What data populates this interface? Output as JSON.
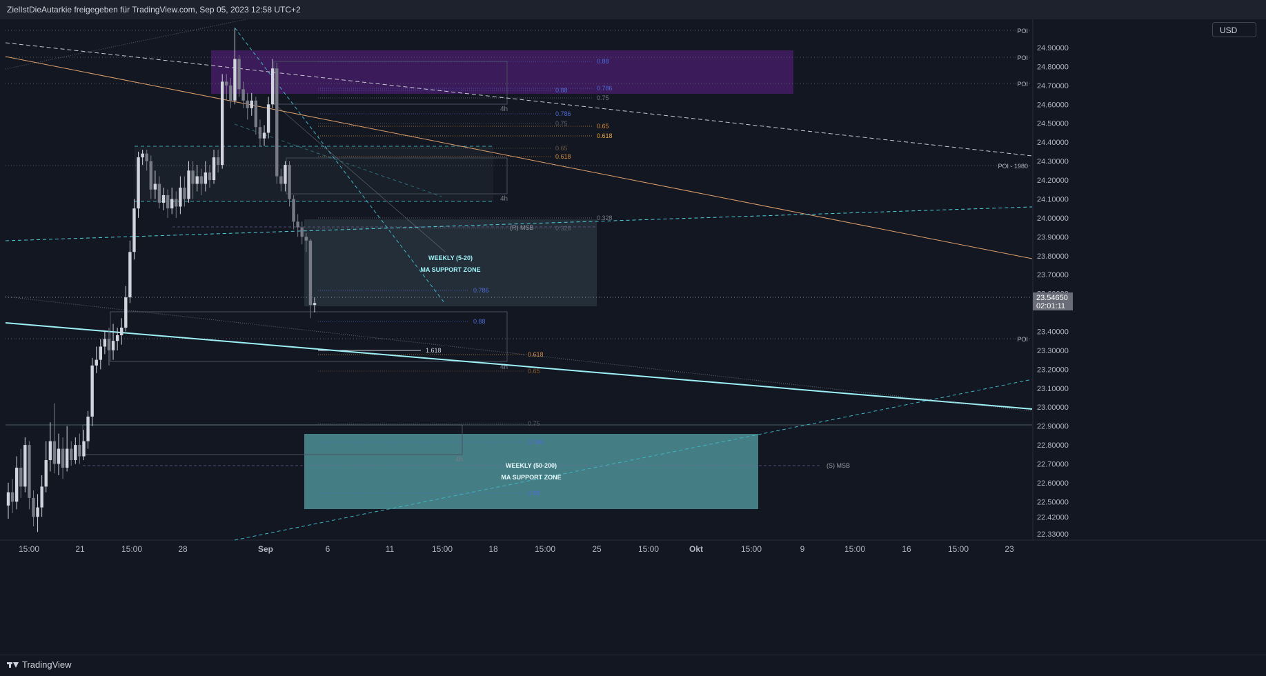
{
  "header": {
    "attribution": "ZielIstDieAutarkie freigegeben für TradingView.com, Sep 05, 2023 12:58 UTC+2"
  },
  "currency_button": "USD",
  "footer": {
    "brand": "TradingView"
  },
  "colors": {
    "background": "#131722",
    "candle_up": "#d1d4dc",
    "candle_down": "#787b86",
    "purple_zone": "#4a1d6e",
    "teal_zone": "#4e8f95",
    "support_line": "#9ef1f6",
    "orange_line": "#e0a06a",
    "fib_blue": "#4f6cd8",
    "fib_orange": "#d98e39"
  },
  "chart_data": {
    "type": "candlestick",
    "y_axis": {
      "min": 22.28,
      "max": 25.0,
      "ticks": [
        "24.90000",
        "24.80000",
        "24.70000",
        "24.60000",
        "24.50000",
        "24.40000",
        "24.30000",
        "24.20000",
        "24.10000",
        "24.00000",
        "23.90000",
        "23.80000",
        "23.70000",
        "23.60000",
        "23.40000",
        "23.30000",
        "23.20000",
        "23.10000",
        "23.00000",
        "22.90000",
        "22.80000",
        "22.70000",
        "22.60000",
        "22.50000",
        "22.42000",
        "22.33000"
      ]
    },
    "x_axis": {
      "ticks": [
        "15:00",
        "21",
        "15:00",
        "28",
        "Sep",
        "6",
        "11",
        "15:00",
        "18",
        "15:00",
        "25",
        "15:00",
        "Okt",
        "15:00",
        "9",
        "15:00",
        "16",
        "15:00",
        "23"
      ],
      "bold_ticks": [
        "Sep",
        "Okt"
      ]
    },
    "price_label": {
      "value": "23.54650",
      "countdown": "02:01:11"
    },
    "candles": [
      {
        "o": 22.48,
        "c": 22.55,
        "h": 22.6,
        "l": 22.41
      },
      {
        "o": 22.55,
        "c": 22.5,
        "h": 22.62,
        "l": 22.44
      },
      {
        "o": 22.5,
        "c": 22.68,
        "h": 22.74,
        "l": 22.46
      },
      {
        "o": 22.68,
        "c": 22.58,
        "h": 22.78,
        "l": 22.52
      },
      {
        "o": 22.58,
        "c": 22.8,
        "h": 22.84,
        "l": 22.55
      },
      {
        "o": 22.8,
        "c": 22.52,
        "h": 22.82,
        "l": 22.46
      },
      {
        "o": 22.52,
        "c": 22.42,
        "h": 22.56,
        "l": 22.37
      },
      {
        "o": 22.42,
        "c": 22.47,
        "h": 22.54,
        "l": 22.34
      },
      {
        "o": 22.47,
        "c": 22.58,
        "h": 22.64,
        "l": 22.42
      },
      {
        "o": 22.58,
        "c": 22.72,
        "h": 22.82,
        "l": 22.55
      },
      {
        "o": 22.72,
        "c": 22.82,
        "h": 22.92,
        "l": 22.66
      },
      {
        "o": 22.82,
        "c": 22.7,
        "h": 23.02,
        "l": 22.65
      },
      {
        "o": 22.7,
        "c": 22.78,
        "h": 22.86,
        "l": 22.64
      },
      {
        "o": 22.78,
        "c": 22.68,
        "h": 22.84,
        "l": 22.62
      },
      {
        "o": 22.68,
        "c": 22.78,
        "h": 22.9,
        "l": 22.66
      },
      {
        "o": 22.78,
        "c": 22.72,
        "h": 22.82,
        "l": 22.69
      },
      {
        "o": 22.72,
        "c": 22.8,
        "h": 22.84,
        "l": 22.7
      },
      {
        "o": 22.8,
        "c": 22.74,
        "h": 22.86,
        "l": 22.7
      },
      {
        "o": 22.74,
        "c": 22.82,
        "h": 22.88,
        "l": 22.72
      },
      {
        "o": 22.82,
        "c": 22.95,
        "h": 22.98,
        "l": 22.78
      },
      {
        "o": 22.95,
        "c": 23.22,
        "h": 23.26,
        "l": 22.9
      },
      {
        "o": 23.22,
        "c": 23.25,
        "h": 23.32,
        "l": 23.18
      },
      {
        "o": 23.25,
        "c": 23.32,
        "h": 23.36,
        "l": 23.2
      },
      {
        "o": 23.32,
        "c": 23.36,
        "h": 23.4,
        "l": 23.28
      },
      {
        "o": 23.36,
        "c": 23.3,
        "h": 23.42,
        "l": 23.22
      },
      {
        "o": 23.3,
        "c": 23.35,
        "h": 23.44,
        "l": 23.25
      },
      {
        "o": 23.35,
        "c": 23.38,
        "h": 23.42,
        "l": 23.3
      },
      {
        "o": 23.38,
        "c": 23.42,
        "h": 23.47,
        "l": 23.33
      },
      {
        "o": 23.42,
        "c": 23.58,
        "h": 23.64,
        "l": 23.4
      },
      {
        "o": 23.58,
        "c": 23.82,
        "h": 23.88,
        "l": 23.55
      },
      {
        "o": 23.82,
        "c": 24.05,
        "h": 24.1,
        "l": 23.78
      },
      {
        "o": 24.05,
        "c": 24.32,
        "h": 24.35,
        "l": 24.0
      },
      {
        "o": 24.32,
        "c": 24.34,
        "h": 24.36,
        "l": 24.28
      },
      {
        "o": 24.34,
        "c": 24.3,
        "h": 24.36,
        "l": 24.25
      },
      {
        "o": 24.3,
        "c": 24.15,
        "h": 24.33,
        "l": 24.1
      },
      {
        "o": 24.15,
        "c": 24.18,
        "h": 24.25,
        "l": 24.1
      },
      {
        "o": 24.18,
        "c": 24.08,
        "h": 24.22,
        "l": 24.05
      },
      {
        "o": 24.08,
        "c": 24.12,
        "h": 24.16,
        "l": 24.04
      },
      {
        "o": 24.12,
        "c": 24.05,
        "h": 24.15,
        "l": 24.0
      },
      {
        "o": 24.05,
        "c": 24.1,
        "h": 24.16,
        "l": 24.02
      },
      {
        "o": 24.1,
        "c": 24.06,
        "h": 24.14,
        "l": 24.0
      },
      {
        "o": 24.06,
        "c": 24.16,
        "h": 24.22,
        "l": 24.02
      },
      {
        "o": 24.16,
        "c": 24.1,
        "h": 24.22,
        "l": 24.06
      },
      {
        "o": 24.1,
        "c": 24.25,
        "h": 24.3,
        "l": 24.08
      },
      {
        "o": 24.25,
        "c": 24.18,
        "h": 24.3,
        "l": 24.1
      },
      {
        "o": 24.18,
        "c": 24.22,
        "h": 24.28,
        "l": 24.14
      },
      {
        "o": 24.22,
        "c": 24.18,
        "h": 24.26,
        "l": 24.12
      },
      {
        "o": 24.18,
        "c": 24.24,
        "h": 24.3,
        "l": 24.14
      },
      {
        "o": 24.24,
        "c": 24.2,
        "h": 24.28,
        "l": 24.16
      },
      {
        "o": 24.2,
        "c": 24.32,
        "h": 24.36,
        "l": 24.18
      },
      {
        "o": 24.32,
        "c": 24.28,
        "h": 24.36,
        "l": 24.24
      },
      {
        "o": 24.28,
        "c": 24.72,
        "h": 24.76,
        "l": 24.26
      },
      {
        "o": 24.72,
        "c": 24.7,
        "h": 24.76,
        "l": 24.62
      },
      {
        "o": 24.7,
        "c": 24.62,
        "h": 24.74,
        "l": 24.58
      },
      {
        "o": 24.62,
        "c": 24.84,
        "h": 25.0,
        "l": 24.6
      },
      {
        "o": 24.84,
        "c": 24.68,
        "h": 24.86,
        "l": 24.64
      },
      {
        "o": 24.68,
        "c": 24.62,
        "h": 24.72,
        "l": 24.58
      },
      {
        "o": 24.62,
        "c": 24.58,
        "h": 24.66,
        "l": 24.52
      },
      {
        "o": 24.58,
        "c": 24.62,
        "h": 24.66,
        "l": 24.54
      },
      {
        "o": 24.62,
        "c": 24.48,
        "h": 24.64,
        "l": 24.44
      },
      {
        "o": 24.48,
        "c": 24.42,
        "h": 24.52,
        "l": 24.38
      },
      {
        "o": 24.42,
        "c": 24.45,
        "h": 24.49,
        "l": 24.38
      },
      {
        "o": 24.45,
        "c": 24.6,
        "h": 24.64,
        "l": 24.42
      },
      {
        "o": 24.6,
        "c": 24.79,
        "h": 24.84,
        "l": 24.58
      },
      {
        "o": 24.79,
        "c": 24.22,
        "h": 24.82,
        "l": 24.18
      },
      {
        "o": 24.22,
        "c": 24.18,
        "h": 24.26,
        "l": 24.14
      },
      {
        "o": 24.18,
        "c": 24.28,
        "h": 24.3,
        "l": 24.14
      },
      {
        "o": 24.28,
        "c": 24.1,
        "h": 24.3,
        "l": 24.06
      },
      {
        "o": 24.1,
        "c": 23.98,
        "h": 24.12,
        "l": 23.94
      },
      {
        "o": 23.98,
        "c": 23.95,
        "h": 24.02,
        "l": 23.9
      },
      {
        "o": 23.95,
        "c": 23.9,
        "h": 23.98,
        "l": 23.86
      },
      {
        "o": 23.9,
        "c": 23.88,
        "h": 23.92,
        "l": 23.82
      },
      {
        "o": 23.88,
        "c": 23.54,
        "h": 23.89,
        "l": 23.47
      },
      {
        "o": 23.54,
        "c": 23.55,
        "h": 23.58,
        "l": 23.5
      }
    ],
    "zones": [
      {
        "label": "WEEKLY (5-20)",
        "sublabel": "MA SUPPORT ZONE"
      },
      {
        "label": "WEEKLY (50-200)",
        "sublabel": "MA SUPPORT ZONE"
      }
    ],
    "annotations": {
      "poi": "POI",
      "poi_1980": "POI - 1980",
      "r_msb": "(R) MSB",
      "s_msb": "(S) MSB",
      "tf_4h": "4h",
      "fib": [
        "0.88",
        "0.786",
        "0.75",
        "0.65",
        "0.618",
        "0.328",
        "1.618"
      ]
    }
  }
}
